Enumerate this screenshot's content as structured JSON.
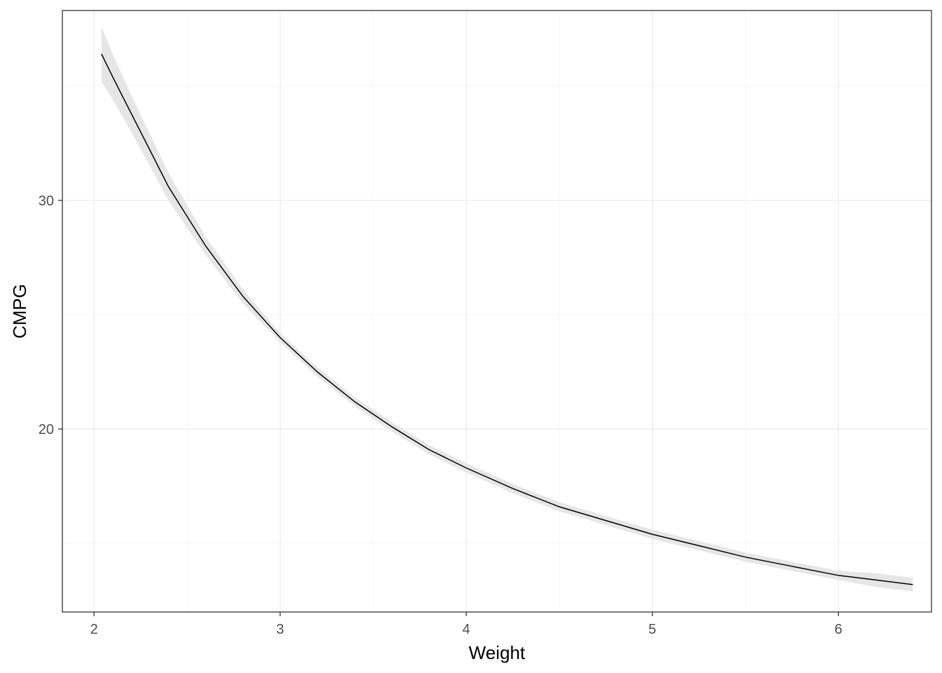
{
  "chart_data": {
    "type": "line",
    "title": "",
    "xlabel": "Weight",
    "ylabel": "CMPG",
    "xlim": [
      1.83,
      6.5
    ],
    "ylim": [
      12.0,
      38.3
    ],
    "x_ticks": [
      2,
      3,
      4,
      5,
      6
    ],
    "x_tick_labels": [
      "2",
      "3",
      "4",
      "5",
      "6"
    ],
    "x_minor_ticks": [
      2.5,
      3.5,
      4.5,
      5.5
    ],
    "y_ticks": [
      20,
      30
    ],
    "y_tick_labels": [
      "20",
      "30"
    ],
    "y_minor_ticks": [
      15,
      25,
      35
    ],
    "grid": true,
    "legend": "none",
    "series": [
      {
        "x": [
          2.04,
          2.1,
          2.2,
          2.3,
          2.4,
          2.5,
          2.6,
          2.8,
          3.0,
          3.2,
          3.4,
          3.6,
          3.8,
          4.0,
          4.25,
          4.5,
          4.75,
          5.0,
          5.25,
          5.5,
          5.75,
          6.0,
          6.2,
          6.4
        ],
        "y": [
          36.4,
          35.4,
          33.8,
          32.2,
          30.6,
          29.3,
          28.0,
          25.8,
          24.0,
          22.5,
          21.2,
          20.1,
          19.1,
          18.3,
          17.4,
          16.6,
          16.0,
          15.4,
          14.9,
          14.4,
          14.0,
          13.6,
          13.4,
          13.2
        ],
        "ci_lower": [
          35.2,
          34.4,
          33.0,
          31.5,
          30.0,
          28.8,
          27.6,
          25.5,
          23.8,
          22.3,
          21.0,
          19.9,
          18.9,
          18.1,
          17.2,
          16.4,
          15.8,
          15.2,
          14.7,
          14.2,
          13.8,
          13.4,
          13.1,
          12.9
        ],
        "ci_upper": [
          37.6,
          36.4,
          34.6,
          32.9,
          31.2,
          29.8,
          28.4,
          26.1,
          24.2,
          22.7,
          21.4,
          20.3,
          19.3,
          18.5,
          17.6,
          16.8,
          16.2,
          15.6,
          15.1,
          14.6,
          14.2,
          13.8,
          13.7,
          13.5
        ],
        "color": "#000000",
        "ribbon_color": "#e6e6e6"
      }
    ]
  },
  "colors": {
    "panel_border": "#333333",
    "grid_major": "#ebebeb",
    "grid_minor": "#f5f5f5",
    "tick_text": "#4d4d4d",
    "axis_title": "#000000"
  }
}
